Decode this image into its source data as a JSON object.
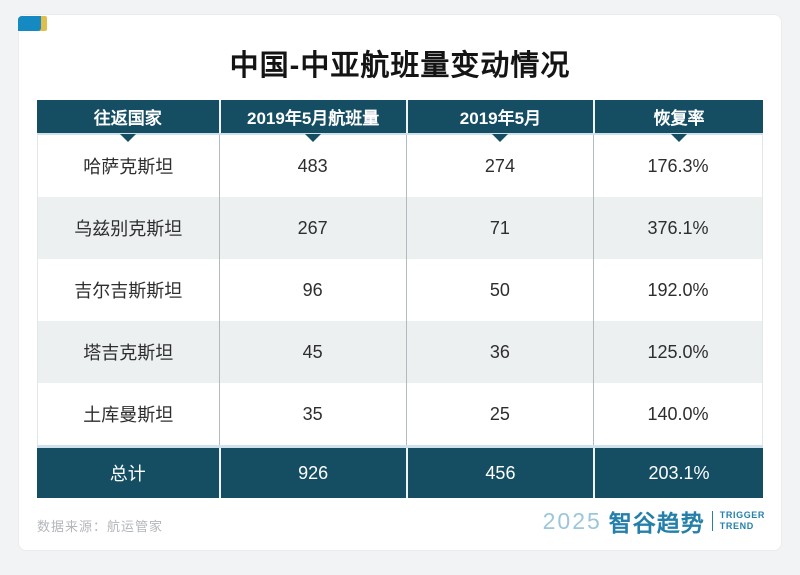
{
  "page": {
    "title": "中国-中亚航班量变动情况",
    "source_note": "数据来源：航运管家"
  },
  "table": {
    "headers": [
      "往返国家",
      "2019年5月航班量",
      "2019年5月",
      "恢复率"
    ],
    "rows": [
      [
        "哈萨克斯坦",
        "483",
        "274",
        "176.3%"
      ],
      [
        "乌兹别克斯坦",
        "267",
        "71",
        "376.1%"
      ],
      [
        "吉尔吉斯斯坦",
        "96",
        "50",
        "192.0%"
      ],
      [
        "塔吉克斯坦",
        "45",
        "36",
        "125.0%"
      ],
      [
        "土库曼斯坦",
        "35",
        "25",
        "140.0%"
      ]
    ],
    "total": [
      "总计",
      "926",
      "456",
      "203.1%"
    ]
  },
  "footer": {
    "brand_year": "2025",
    "brand_name": "智谷趋势",
    "brand_en_line1": "TRIGGER",
    "brand_en_line2": "TREND"
  },
  "colors": {
    "header_bg": "#154e63",
    "alt_row_bg": "#edf0f1",
    "divider_light_blue": "#cfe2ec",
    "corner_blue": "#1489c2",
    "corner_gold": "#e0bd4d",
    "brand_teal": "#2480a9"
  },
  "chart_data": {
    "type": "table",
    "title": "中国-中亚航班量变动情况",
    "columns": [
      "往返国家",
      "2019年5月航班量",
      "2019年5月",
      "恢复率"
    ],
    "rows": [
      [
        "哈萨克斯坦",
        483,
        274,
        "176.3%"
      ],
      [
        "乌兹别克斯坦",
        267,
        71,
        "376.1%"
      ],
      [
        "吉尔吉斯斯坦",
        96,
        50,
        "192.0%"
      ],
      [
        "塔吉克斯坦",
        45,
        36,
        "125.0%"
      ],
      [
        "土库曼斯坦",
        35,
        25,
        "140.0%"
      ]
    ],
    "total_row": [
      "总计",
      926,
      456,
      "203.1%"
    ],
    "source": "数据来源：航运管家",
    "layout": "header and total rows dark teal, body rows alternate white/light gray, all cells center-aligned"
  }
}
